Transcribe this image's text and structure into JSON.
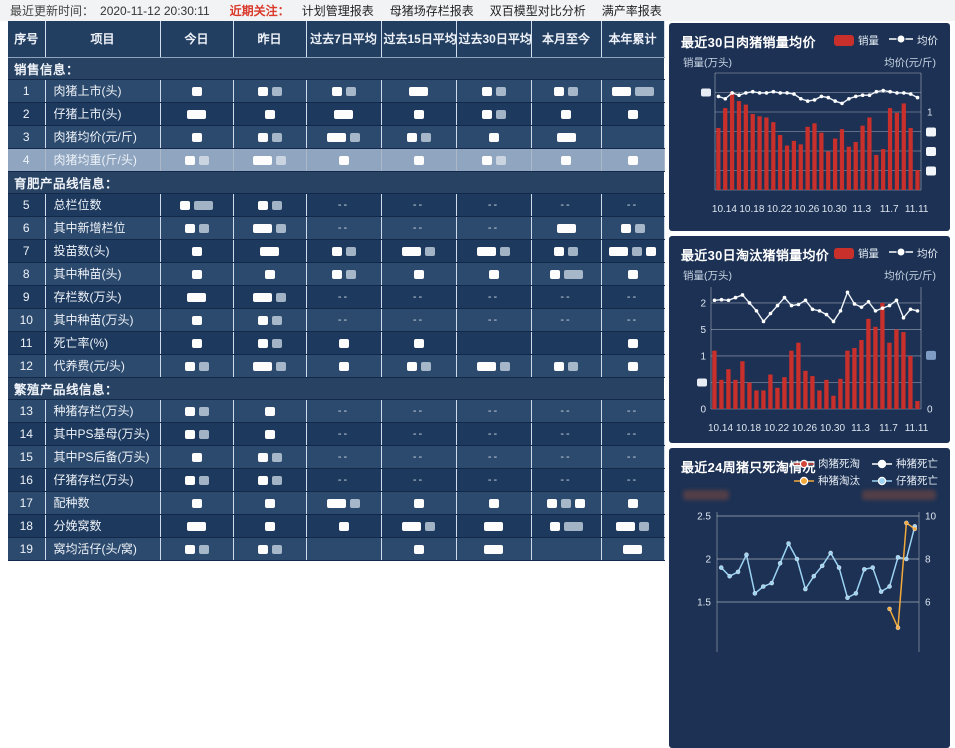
{
  "topbar": {
    "updated_label": "最近更新时间：",
    "updated_time": "2020-11-12 20:30:11",
    "focus_label": "近期关注：",
    "menu": [
      "计划管理报表",
      "母猪场存栏报表",
      "双百模型对比分析",
      "满产率报表"
    ]
  },
  "table": {
    "headers": [
      "序号",
      "项目",
      "今日",
      "昨日",
      "过去7日平均",
      "过去15日平均",
      "过去30日平均",
      "本月至今",
      "本年累计"
    ],
    "cell_legend": {
      "s": "small redacted value block",
      "w": "wide redacted value block",
      "--": "no data",
      "": "empty cell"
    },
    "rows": [
      {
        "type": "section",
        "label": "销售信息："
      },
      {
        "type": "item",
        "no": "1",
        "label": "肉猪上市(头)",
        "shade": "a",
        "cells": [
          [
            "s"
          ],
          [
            "s",
            "s"
          ],
          [
            "s",
            "s"
          ],
          [
            "w"
          ],
          [
            "s",
            "s"
          ],
          [
            "s",
            "s"
          ],
          [
            "w",
            "w"
          ]
        ]
      },
      {
        "type": "item",
        "no": "2",
        "label": "仔猪上市(头)",
        "shade": "b",
        "cells": [
          [
            "w"
          ],
          [
            "s"
          ],
          [
            "w"
          ],
          [
            "s"
          ],
          [
            "s",
            "s"
          ],
          [
            "s"
          ],
          [
            "s"
          ]
        ]
      },
      {
        "type": "item",
        "no": "3",
        "label": "肉猪均价(元/斤)",
        "shade": "a",
        "cells": [
          [
            "s"
          ],
          [
            "s",
            "s"
          ],
          [
            "w",
            "s"
          ],
          [
            "s",
            "s"
          ],
          [
            "s"
          ],
          [
            "w"
          ],
          ""
        ]
      },
      {
        "type": "item",
        "no": "4",
        "label": "肉猪均重(斤/头)",
        "shade": "h",
        "cells": [
          [
            "s",
            "s"
          ],
          [
            "w",
            "s"
          ],
          [
            "s"
          ],
          [
            "s"
          ],
          [
            "s",
            "s"
          ],
          [
            "s"
          ],
          [
            "s"
          ]
        ]
      },
      {
        "type": "section",
        "label": "育肥产品线信息："
      },
      {
        "type": "item",
        "no": "5",
        "label": "总栏位数",
        "shade": "b",
        "cells": [
          [
            "s",
            "w"
          ],
          [
            "s",
            "s"
          ],
          "--",
          "--",
          "--",
          "--",
          "--"
        ]
      },
      {
        "type": "item",
        "no": "6",
        "label": "其中新增栏位",
        "shade": "a",
        "cells": [
          [
            "s",
            "s"
          ],
          [
            "w",
            "s"
          ],
          "--",
          "--",
          "--",
          [
            "w"
          ],
          [
            "s",
            "s"
          ]
        ]
      },
      {
        "type": "item",
        "no": "7",
        "label": "投苗数(头)",
        "shade": "b",
        "cells": [
          [
            "s"
          ],
          [
            "w"
          ],
          [
            "s",
            "s"
          ],
          [
            "w",
            "s"
          ],
          [
            "w",
            "s"
          ],
          [
            "s",
            "s"
          ],
          [
            "w",
            "s",
            "s"
          ]
        ]
      },
      {
        "type": "item",
        "no": "8",
        "label": "其中种苗(头)",
        "shade": "a",
        "cells": [
          [
            "s"
          ],
          [
            "s"
          ],
          [
            "s",
            "s"
          ],
          [
            "s"
          ],
          [
            "s"
          ],
          [
            "s",
            "w"
          ],
          [
            "s"
          ]
        ]
      },
      {
        "type": "item",
        "no": "9",
        "label": "存栏数(万头)",
        "shade": "b",
        "cells": [
          [
            "w"
          ],
          [
            "w",
            "s"
          ],
          "--",
          "--",
          "--",
          "--",
          "--"
        ]
      },
      {
        "type": "item",
        "no": "10",
        "label": "其中种苗(万头)",
        "shade": "a",
        "cells": [
          [
            "s"
          ],
          [
            "s",
            "s"
          ],
          "--",
          "--",
          "--",
          "--",
          "--"
        ]
      },
      {
        "type": "item",
        "no": "11",
        "label": "死亡率(%)",
        "shade": "b",
        "cells": [
          [
            "s"
          ],
          [
            "s",
            "s"
          ],
          [
            "s"
          ],
          [
            "s"
          ],
          "",
          "",
          [
            "s"
          ]
        ]
      },
      {
        "type": "item",
        "no": "12",
        "label": "代养费(元/头)",
        "shade": "a",
        "cells": [
          [
            "s",
            "s"
          ],
          [
            "w",
            "s"
          ],
          [
            "s"
          ],
          [
            "s",
            "s"
          ],
          [
            "w",
            "s"
          ],
          [
            "s",
            "s"
          ],
          [
            "s"
          ]
        ]
      },
      {
        "type": "section",
        "label": "繁殖产品线信息："
      },
      {
        "type": "item",
        "no": "13",
        "label": "种猪存栏(万头)",
        "shade": "a",
        "cells": [
          [
            "s",
            "s"
          ],
          [
            "s"
          ],
          "--",
          "--",
          "--",
          "--",
          "--"
        ]
      },
      {
        "type": "item",
        "no": "14",
        "label": "其中PS基母(万头)",
        "shade": "b",
        "cells": [
          [
            "s",
            "s"
          ],
          [
            "s"
          ],
          "--",
          "--",
          "--",
          "--",
          "--"
        ]
      },
      {
        "type": "item",
        "no": "15",
        "label": "其中PS后备(万头)",
        "shade": "a",
        "cells": [
          [
            "s"
          ],
          [
            "s",
            "s"
          ],
          "--",
          "--",
          "--",
          "--",
          "--"
        ]
      },
      {
        "type": "item",
        "no": "16",
        "label": "仔猪存栏(万头)",
        "shade": "b",
        "cells": [
          [
            "s",
            "s"
          ],
          [
            "s",
            "s"
          ],
          "--",
          "--",
          "--",
          "--",
          "--"
        ]
      },
      {
        "type": "item",
        "no": "17",
        "label": "配种数",
        "shade": "a",
        "cells": [
          [
            "s"
          ],
          [
            "s"
          ],
          [
            "w",
            "s"
          ],
          [
            "s"
          ],
          [
            "s"
          ],
          [
            "s",
            "s",
            "s"
          ],
          [
            "s"
          ]
        ]
      },
      {
        "type": "item",
        "no": "18",
        "label": "分娩窝数",
        "shade": "b",
        "cells": [
          [
            "w"
          ],
          [
            "s"
          ],
          [
            "s"
          ],
          [
            "w",
            "s"
          ],
          [
            "w"
          ],
          [
            "s",
            "w"
          ],
          [
            "w",
            "s"
          ]
        ]
      },
      {
        "type": "item",
        "no": "19",
        "label": "窝均活仔(头/窝)",
        "shade": "a",
        "cells": [
          [
            "s",
            "s"
          ],
          [
            "s",
            "s"
          ],
          "",
          [
            "s"
          ],
          [
            "w"
          ],
          "",
          [
            "w"
          ]
        ]
      }
    ]
  },
  "chart_data": [
    {
      "type": "bar+line",
      "title": "最近30日肉猪销量均价",
      "legend": [
        {
          "label": "销量",
          "kind": "bar",
          "color": "#c9302c"
        },
        {
          "label": "均价",
          "kind": "line",
          "color": "#ffffff"
        }
      ],
      "ylabel_left": "销量(万头)",
      "ylabel_right": "均价(元/斤)",
      "x_tick_labels": [
        "10.14",
        "10.18",
        "10.22",
        "10.26",
        "10.30",
        "11.3",
        "11.7",
        "11.11"
      ],
      "x_tick_every": 4,
      "y_axis_note": "left axis values redacted in source; bar/line values estimated as fraction of plot height",
      "right_axis_visible_tick": "1",
      "ylim": [
        0,
        1
      ],
      "bars": [
        0.53,
        0.7,
        0.84,
        0.76,
        0.73,
        0.65,
        0.63,
        0.62,
        0.58,
        0.47,
        0.38,
        0.42,
        0.39,
        0.54,
        0.57,
        0.49,
        0.33,
        0.44,
        0.52,
        0.37,
        0.41,
        0.55,
        0.62,
        0.3,
        0.35,
        0.7,
        0.66,
        0.74,
        0.53,
        0.17
      ],
      "line": [
        0.8,
        0.78,
        0.83,
        0.81,
        0.83,
        0.84,
        0.83,
        0.83,
        0.84,
        0.83,
        0.83,
        0.82,
        0.78,
        0.76,
        0.77,
        0.8,
        0.79,
        0.76,
        0.74,
        0.78,
        0.8,
        0.81,
        0.81,
        0.84,
        0.85,
        0.84,
        0.83,
        0.83,
        0.82,
        0.79
      ]
    },
    {
      "type": "bar+line",
      "title": "最近30日淘汰猪销量均价",
      "legend": [
        {
          "label": "销量",
          "kind": "bar",
          "color": "#c9302c"
        },
        {
          "label": "均价",
          "kind": "line",
          "color": "#ffffff"
        }
      ],
      "ylabel_left": "销量(万头)",
      "ylabel_right": "均价(元/斤)",
      "x_tick_labels": [
        "10.14",
        "10.18",
        "10.22",
        "10.26",
        "10.30",
        "11.3",
        "11.7",
        "11.11"
      ],
      "x_tick_every": 4,
      "left_tick_labels_visible": [
        "2",
        "5",
        "1",
        "",
        "0"
      ],
      "right_tick_labels_visible": [
        "0"
      ],
      "ylim": [
        0,
        2.3
      ],
      "grid_values": [
        2,
        1.5,
        1,
        0.5,
        0
      ],
      "bars": [
        1.1,
        0.55,
        0.75,
        0.55,
        0.9,
        0.5,
        0.35,
        0.35,
        0.65,
        0.4,
        0.6,
        1.1,
        1.25,
        0.72,
        0.62,
        0.35,
        0.55,
        0.25,
        0.57,
        1.1,
        1.15,
        1.3,
        1.7,
        1.55,
        2.0,
        1.25,
        1.5,
        1.45,
        1.0,
        0.15
      ],
      "line": [
        2.05,
        2.06,
        2.05,
        2.1,
        2.15,
        2.0,
        1.85,
        1.65,
        1.8,
        1.95,
        2.1,
        1.95,
        1.97,
        2.05,
        1.88,
        1.85,
        1.78,
        1.65,
        1.85,
        2.2,
        1.98,
        1.92,
        2.02,
        1.85,
        1.9,
        1.95,
        2.05,
        1.72,
        1.88,
        1.85
      ]
    },
    {
      "type": "line",
      "title": "最近24周猪只死淘情况",
      "legend": [
        {
          "label": "肉猪死淘",
          "color": "#d4453a"
        },
        {
          "label": "种猪死亡",
          "color": "#ffffff"
        },
        {
          "label": "种猪淘汰",
          "color": "#f2a93b"
        },
        {
          "label": "仔猪死亡",
          "color": "#9cd2f2"
        }
      ],
      "axis_titles_redacted": true,
      "left_ticks": [
        "2.5",
        "2",
        "1.5"
      ],
      "right_ticks": [
        "10",
        "8",
        "6"
      ],
      "grid_values": [
        2.5,
        2.0,
        1.5
      ],
      "series": [
        {
          "name": "仔猪死亡",
          "color": "#9cd2f2",
          "values": [
            1.9,
            1.8,
            1.85,
            2.05,
            1.6,
            1.68,
            1.72,
            1.95,
            2.18,
            2.0,
            1.65,
            1.8,
            1.92,
            2.07,
            1.9,
            1.55,
            1.6,
            1.88,
            1.9,
            1.62,
            1.68,
            2.02,
            2.0,
            2.38
          ]
        },
        {
          "name": "种猪淘汰",
          "color": "#f2a93b",
          "values": [
            null,
            null,
            null,
            null,
            null,
            null,
            null,
            null,
            null,
            null,
            null,
            null,
            null,
            null,
            null,
            null,
            null,
            null,
            null,
            null,
            1.42,
            1.2,
            2.42,
            2.35
          ]
        },
        {
          "name": "肉猪死淘",
          "color": "#d4453a",
          "values": [],
          "note": "below visible crop"
        },
        {
          "name": "种猪死亡",
          "color": "#ffffff",
          "values": [],
          "note": "below visible crop"
        }
      ]
    }
  ],
  "colors": {
    "bar_red": "#c9302c",
    "line_white": "#eef3f8",
    "line_lightblue": "#9cd2f2",
    "line_orange": "#f2a93b",
    "card_bg": "#1c3154",
    "row_medium": "#2c4a6d",
    "row_dark": "#1d3a5e",
    "row_highlight": "#8fa5c0",
    "header_bg": "#223e61",
    "focus_red": "#d93a2b"
  }
}
